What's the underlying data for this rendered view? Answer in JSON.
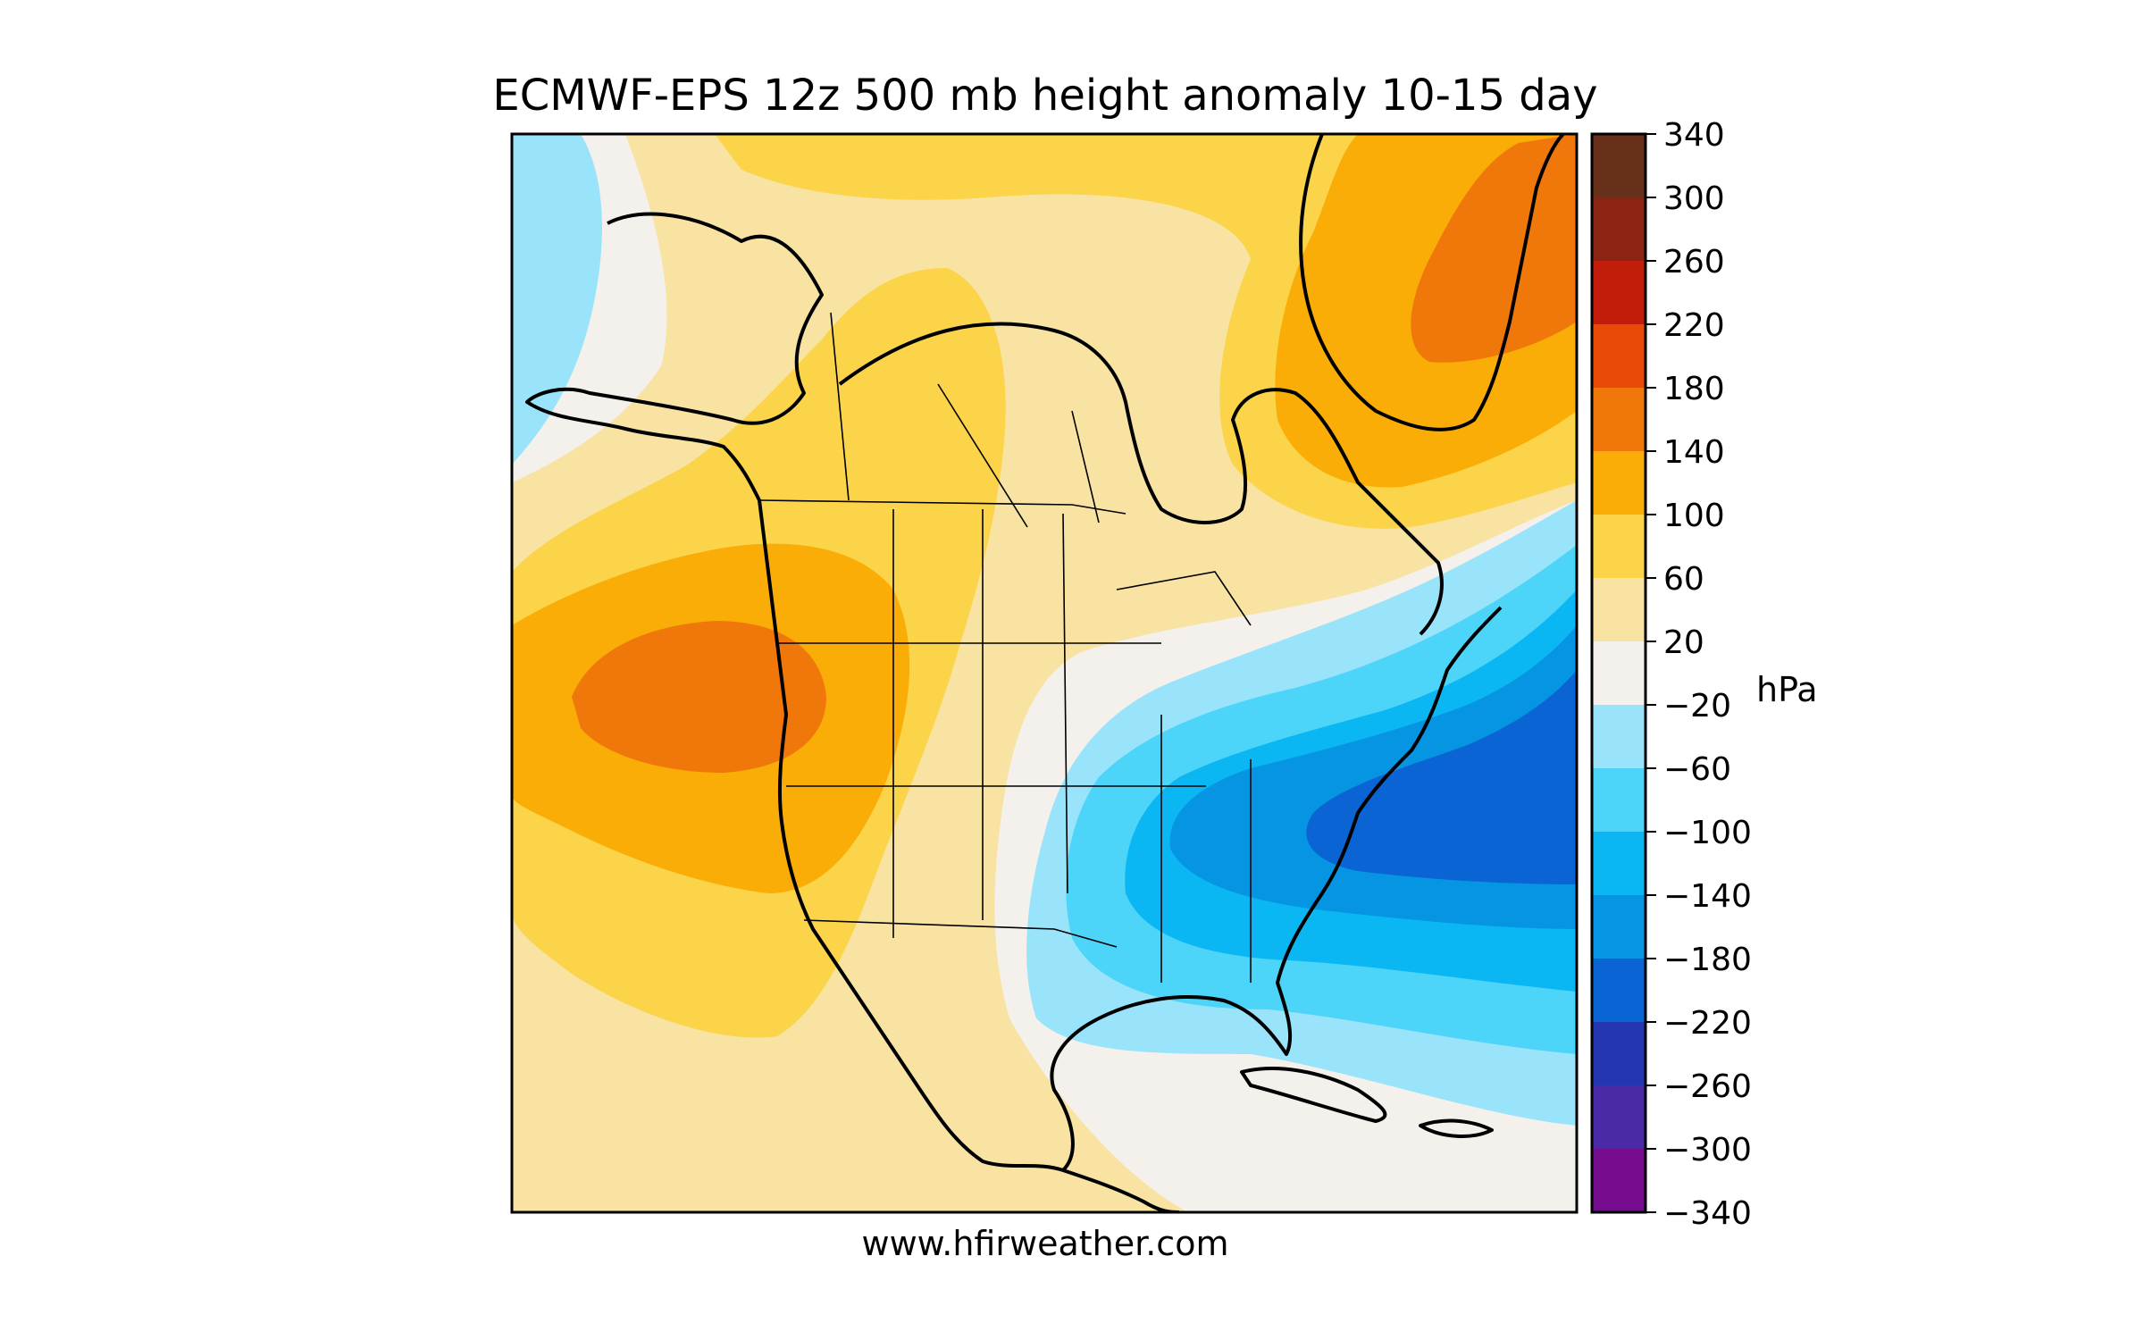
{
  "title": "ECMWF-EPS 12z 500 mb height anomaly 10-15 day",
  "credit": "www.hfirweather.com",
  "colorbar": {
    "unit": "hPa",
    "ticks": [
      "340",
      "300",
      "260",
      "220",
      "180",
      "140",
      "100",
      "60",
      "20",
      "−20",
      "−60",
      "−100",
      "−140",
      "−180",
      "−220",
      "−260",
      "−300",
      "−340"
    ],
    "levels": [
      {
        "lo": 300,
        "hi": 340,
        "color": "#66301a"
      },
      {
        "lo": 260,
        "hi": 300,
        "color": "#8b2413"
      },
      {
        "lo": 220,
        "hi": 260,
        "color": "#c21c0a"
      },
      {
        "lo": 180,
        "hi": 220,
        "color": "#ea4a07"
      },
      {
        "lo": 140,
        "hi": 180,
        "color": "#f0780a"
      },
      {
        "lo": 100,
        "hi": 140,
        "color": "#f9ad06"
      },
      {
        "lo": 60,
        "hi": 100,
        "color": "#fbd44a"
      },
      {
        "lo": 20,
        "hi": 60,
        "color": "#f8e3a3"
      },
      {
        "lo": -20,
        "hi": 20,
        "color": "#f4f1ec"
      },
      {
        "lo": -60,
        "hi": -20,
        "color": "#99e3fb"
      },
      {
        "lo": -100,
        "hi": -60,
        "color": "#4dd4f9"
      },
      {
        "lo": -140,
        "hi": -100,
        "color": "#0bb7f3"
      },
      {
        "lo": -180,
        "hi": -140,
        "color": "#0595e2"
      },
      {
        "lo": -220,
        "hi": -180,
        "color": "#0a64d3"
      },
      {
        "lo": -260,
        "hi": -220,
        "color": "#2437b1"
      },
      {
        "lo": -300,
        "hi": -260,
        "color": "#4b2aa7"
      },
      {
        "lo": -340,
        "hi": -300,
        "color": "#760c8e"
      }
    ]
  },
  "map": {
    "region": "North America",
    "anomaly_centers": [
      {
        "label": "Pacific Northwest ridge",
        "value_range": [
          140,
          180
        ]
      },
      {
        "label": "Greenland ridge",
        "value_range": [
          140,
          180
        ]
      },
      {
        "label": "Eastern US / NW Atlantic trough",
        "value_range": [
          -220,
          -180
        ]
      },
      {
        "label": "Far NW Pacific trough",
        "value_range": [
          -60,
          -20
        ]
      }
    ]
  }
}
